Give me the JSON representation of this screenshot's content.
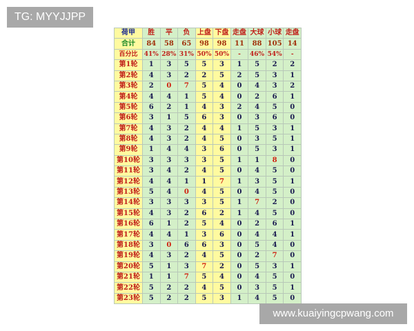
{
  "watermark_top": "TG: MYYJJPP",
  "watermark_bottom": "www.kuaiyingcpwang.com",
  "table": {
    "corner": "荷甲",
    "headers": [
      "胜",
      "平",
      "负",
      "上盘",
      "下盘",
      "走盘",
      "大球",
      "小球",
      "走盘"
    ],
    "total_label": "合计",
    "totals": [
      "84",
      "58",
      "65",
      "98",
      "98",
      "11",
      "88",
      "105",
      "14"
    ],
    "percent_label": "百分比",
    "percents": [
      "41%",
      "28%",
      "31%",
      "50%",
      "50%",
      "-",
      "46%",
      "54%",
      "-"
    ],
    "rows": [
      {
        "label": "第1轮",
        "values": [
          "1",
          "3",
          "5",
          "5",
          "3",
          "1",
          "5",
          "2",
          "2"
        ],
        "highlight": []
      },
      {
        "label": "第2轮",
        "values": [
          "4",
          "3",
          "2",
          "2",
          "5",
          "2",
          "5",
          "3",
          "1"
        ],
        "highlight": []
      },
      {
        "label": "第3轮",
        "values": [
          "2",
          "0",
          "7",
          "5",
          "4",
          "0",
          "4",
          "3",
          "2"
        ],
        "highlight": [
          1,
          2
        ]
      },
      {
        "label": "第4轮",
        "values": [
          "4",
          "4",
          "1",
          "5",
          "4",
          "0",
          "2",
          "6",
          "1"
        ],
        "highlight": []
      },
      {
        "label": "第5轮",
        "values": [
          "6",
          "2",
          "1",
          "4",
          "3",
          "2",
          "4",
          "5",
          "0"
        ],
        "highlight": []
      },
      {
        "label": "第6轮",
        "values": [
          "3",
          "1",
          "5",
          "6",
          "3",
          "0",
          "3",
          "6",
          "0"
        ],
        "highlight": []
      },
      {
        "label": "第7轮",
        "values": [
          "4",
          "3",
          "2",
          "4",
          "4",
          "1",
          "5",
          "3",
          "1"
        ],
        "highlight": []
      },
      {
        "label": "第8轮",
        "values": [
          "4",
          "3",
          "2",
          "4",
          "5",
          "0",
          "3",
          "5",
          "1"
        ],
        "highlight": []
      },
      {
        "label": "第9轮",
        "values": [
          "1",
          "4",
          "4",
          "3",
          "6",
          "0",
          "5",
          "3",
          "1"
        ],
        "highlight": []
      },
      {
        "label": "第10轮",
        "values": [
          "3",
          "3",
          "3",
          "3",
          "5",
          "1",
          "1",
          "8",
          "0"
        ],
        "highlight": [
          7
        ]
      },
      {
        "label": "第11轮",
        "values": [
          "3",
          "4",
          "2",
          "4",
          "5",
          "0",
          "4",
          "5",
          "0"
        ],
        "highlight": []
      },
      {
        "label": "第12轮",
        "values": [
          "4",
          "4",
          "1",
          "1",
          "7",
          "1",
          "3",
          "5",
          "1"
        ],
        "highlight": [
          4
        ]
      },
      {
        "label": "第13轮",
        "values": [
          "5",
          "4",
          "0",
          "4",
          "5",
          "0",
          "4",
          "5",
          "0"
        ],
        "highlight": [
          2
        ]
      },
      {
        "label": "第14轮",
        "values": [
          "3",
          "3",
          "3",
          "3",
          "5",
          "1",
          "7",
          "2",
          "0"
        ],
        "highlight": [
          6
        ]
      },
      {
        "label": "第15轮",
        "values": [
          "4",
          "3",
          "2",
          "6",
          "2",
          "1",
          "4",
          "5",
          "0"
        ],
        "highlight": []
      },
      {
        "label": "第16轮",
        "values": [
          "6",
          "1",
          "2",
          "5",
          "4",
          "0",
          "2",
          "6",
          "1"
        ],
        "highlight": []
      },
      {
        "label": "第17轮",
        "values": [
          "4",
          "4",
          "1",
          "3",
          "6",
          "0",
          "4",
          "4",
          "1"
        ],
        "highlight": []
      },
      {
        "label": "第18轮",
        "values": [
          "3",
          "0",
          "6",
          "6",
          "3",
          "0",
          "5",
          "4",
          "0"
        ],
        "highlight": [
          1
        ]
      },
      {
        "label": "第19轮",
        "values": [
          "4",
          "3",
          "2",
          "4",
          "5",
          "0",
          "2",
          "7",
          "0"
        ],
        "highlight": [
          7
        ]
      },
      {
        "label": "第20轮",
        "values": [
          "5",
          "1",
          "3",
          "7",
          "2",
          "0",
          "5",
          "3",
          "1"
        ],
        "highlight": [
          3
        ]
      },
      {
        "label": "第21轮",
        "values": [
          "1",
          "1",
          "7",
          "5",
          "4",
          "0",
          "4",
          "5",
          "0"
        ],
        "highlight": [
          2
        ]
      },
      {
        "label": "第22轮",
        "values": [
          "5",
          "2",
          "2",
          "4",
          "5",
          "0",
          "3",
          "5",
          "1"
        ],
        "highlight": []
      },
      {
        "label": "第23轮",
        "values": [
          "5",
          "2",
          "2",
          "5",
          "3",
          "1",
          "4",
          "5",
          "0"
        ],
        "highlight": []
      }
    ]
  }
}
